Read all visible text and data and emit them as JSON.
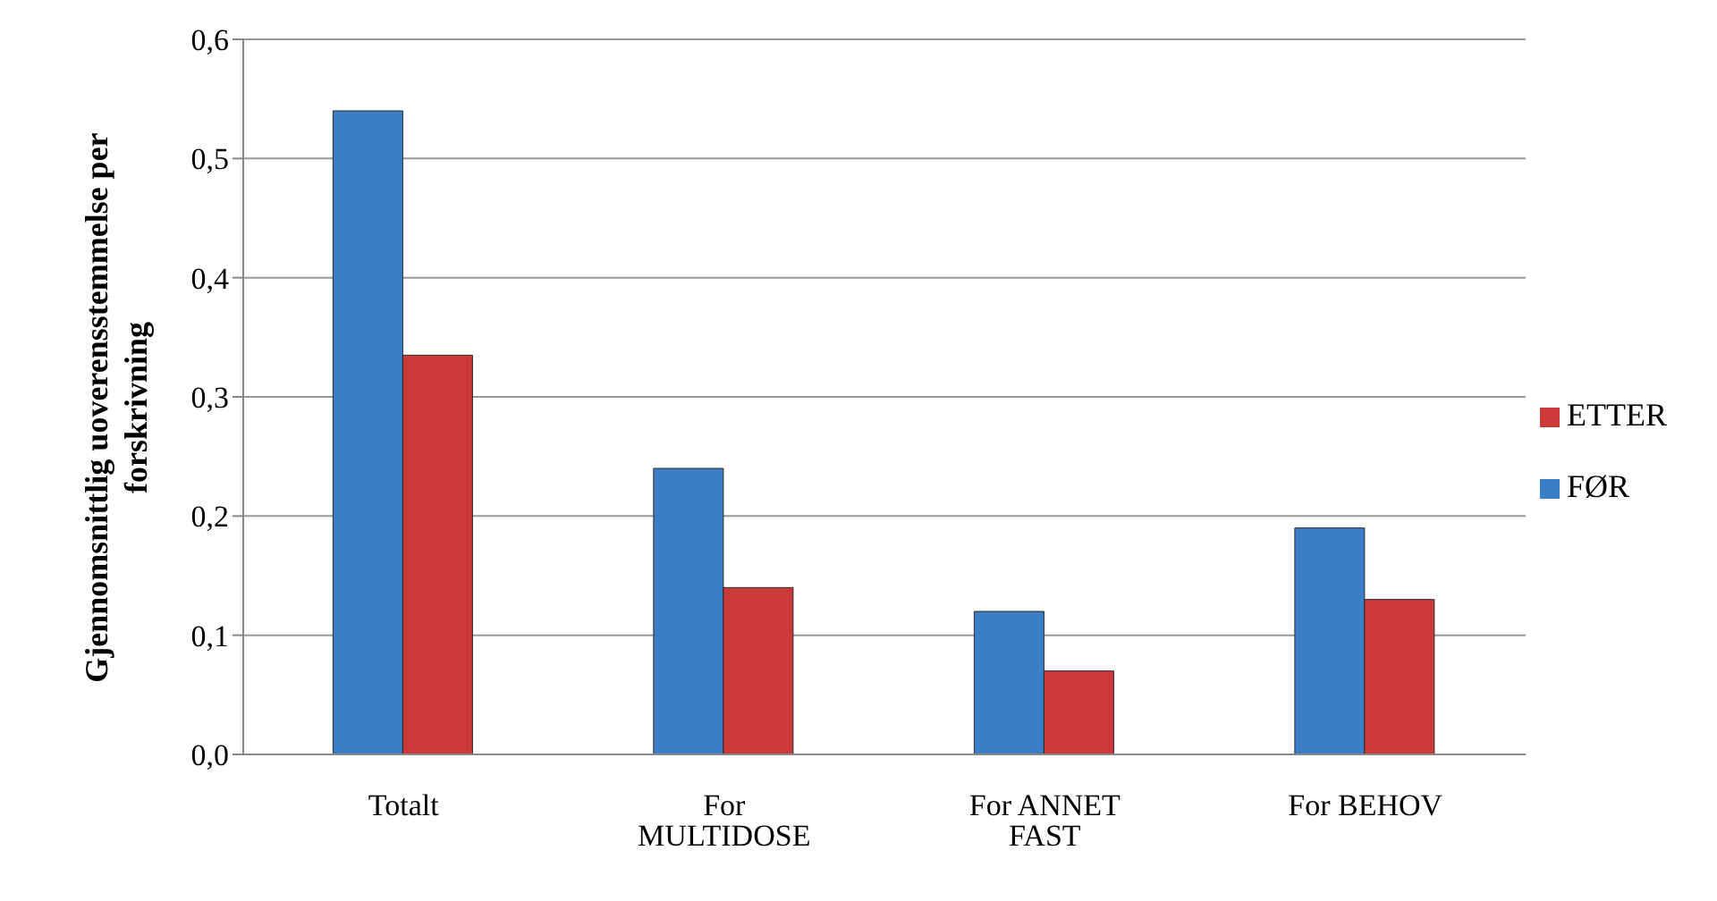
{
  "chart_data": {
    "type": "bar",
    "ylabel": "Gjennomsnittlig  uoverensstemmelse per forskrivning",
    "categories": [
      "Totalt",
      "For MULTIDOSE",
      "For ANNET FAST",
      "For BEHOV"
    ],
    "series": [
      {
        "name": "FØR",
        "color": "#3c7dc8",
        "values": [
          0.54,
          0.24,
          0.12,
          0.19
        ]
      },
      {
        "name": "ETTER",
        "color": "#cc3a38",
        "values": [
          0.335,
          0.14,
          0.07,
          0.13
        ]
      }
    ],
    "ylim": [
      0,
      0.6
    ],
    "yticks": [
      {
        "value": 0,
        "label": "0,0"
      },
      {
        "value": 0.1,
        "label": "0,1"
      },
      {
        "value": 0.2,
        "label": "0,2"
      },
      {
        "value": 0.3,
        "label": "0,3"
      },
      {
        "value": 0.4,
        "label": "0,4"
      },
      {
        "value": 0.5,
        "label": "0,5"
      },
      {
        "value": 0.6,
        "label": "0,6"
      }
    ],
    "grid": "y",
    "legend": "right"
  }
}
